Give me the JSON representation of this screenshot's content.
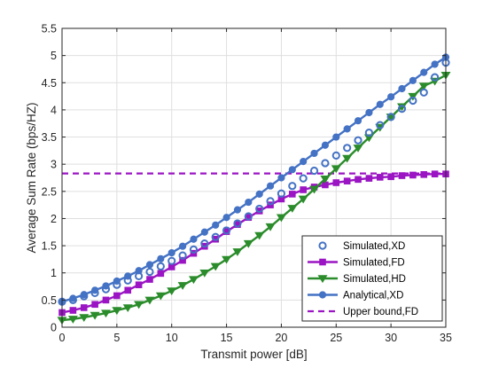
{
  "chart_data": {
    "type": "line",
    "xlabel": "Transmit power [dB]",
    "ylabel": "Average Sum Rate  (bps/HZ)",
    "xlim": [
      0,
      35
    ],
    "ylim": [
      0,
      5.5
    ],
    "xticks": [
      0,
      5,
      10,
      15,
      20,
      25,
      30,
      35
    ],
    "yticks": [
      0,
      0.5,
      1,
      1.5,
      2,
      2.5,
      3,
      3.5,
      4,
      4.5,
      5,
      5.5
    ],
    "xtick_labels": [
      "0",
      "5",
      "10",
      "15",
      "20",
      "25",
      "30",
      "35"
    ],
    "ytick_labels": [
      "0",
      "0.5",
      "1",
      "1.5",
      "2",
      "2.5",
      "3",
      "3.5",
      "4",
      "4.5",
      "5",
      "5.5"
    ],
    "grid": true,
    "legend_position": "bottom-right",
    "x": [
      0,
      1,
      2,
      3,
      4,
      5,
      6,
      7,
      8,
      9,
      10,
      11,
      12,
      13,
      14,
      15,
      16,
      17,
      18,
      19,
      20,
      21,
      22,
      23,
      24,
      25,
      26,
      27,
      28,
      29,
      30,
      31,
      32,
      33,
      34,
      35
    ],
    "series": [
      {
        "name": "Simulated,XD",
        "color": "#4472c4",
        "marker": "circle-open",
        "line": "none",
        "values": [
          0.47,
          0.5,
          0.57,
          0.63,
          0.7,
          0.78,
          0.86,
          0.94,
          1.02,
          1.12,
          1.22,
          1.32,
          1.43,
          1.54,
          1.66,
          1.78,
          1.91,
          2.04,
          2.18,
          2.32,
          2.46,
          2.6,
          2.74,
          2.88,
          3.02,
          3.16,
          3.3,
          3.44,
          3.58,
          3.72,
          3.87,
          4.02,
          4.17,
          4.32,
          4.6,
          4.87
        ]
      },
      {
        "name": "Simulated,FD",
        "color": "#9b15c4",
        "marker": "square",
        "line": "solid",
        "values": [
          0.27,
          0.31,
          0.36,
          0.42,
          0.5,
          0.58,
          0.68,
          0.78,
          0.88,
          0.99,
          1.11,
          1.23,
          1.36,
          1.49,
          1.62,
          1.76,
          1.89,
          2.02,
          2.14,
          2.25,
          2.36,
          2.45,
          2.53,
          2.58,
          2.62,
          2.66,
          2.69,
          2.72,
          2.74,
          2.76,
          2.77,
          2.79,
          2.8,
          2.81,
          2.82,
          2.82
        ]
      },
      {
        "name": "Simulated,HD",
        "color": "#2a8c2a",
        "marker": "triangle-down",
        "line": "solid",
        "values": [
          0.13,
          0.15,
          0.18,
          0.22,
          0.26,
          0.31,
          0.36,
          0.42,
          0.5,
          0.58,
          0.67,
          0.77,
          0.88,
          1.0,
          1.12,
          1.25,
          1.39,
          1.54,
          1.69,
          1.85,
          2.02,
          2.19,
          2.36,
          2.54,
          2.73,
          2.92,
          3.11,
          3.3,
          3.49,
          3.68,
          3.87,
          4.06,
          4.25,
          4.44,
          4.53,
          4.64
        ]
      },
      {
        "name": "Analytical,XD",
        "color": "#4472c4",
        "marker": "circle",
        "line": "solid",
        "values": [
          0.47,
          0.53,
          0.6,
          0.68,
          0.76,
          0.85,
          0.94,
          1.04,
          1.15,
          1.26,
          1.37,
          1.49,
          1.62,
          1.75,
          1.88,
          2.02,
          2.16,
          2.3,
          2.45,
          2.6,
          2.75,
          2.9,
          3.05,
          3.2,
          3.35,
          3.5,
          3.65,
          3.8,
          3.95,
          4.1,
          4.24,
          4.39,
          4.54,
          4.69,
          4.84,
          4.97
        ]
      },
      {
        "name": "Upper bound,FD",
        "color": "#9b15c4",
        "marker": "none",
        "line": "dashed",
        "constant": 2.83
      }
    ]
  }
}
